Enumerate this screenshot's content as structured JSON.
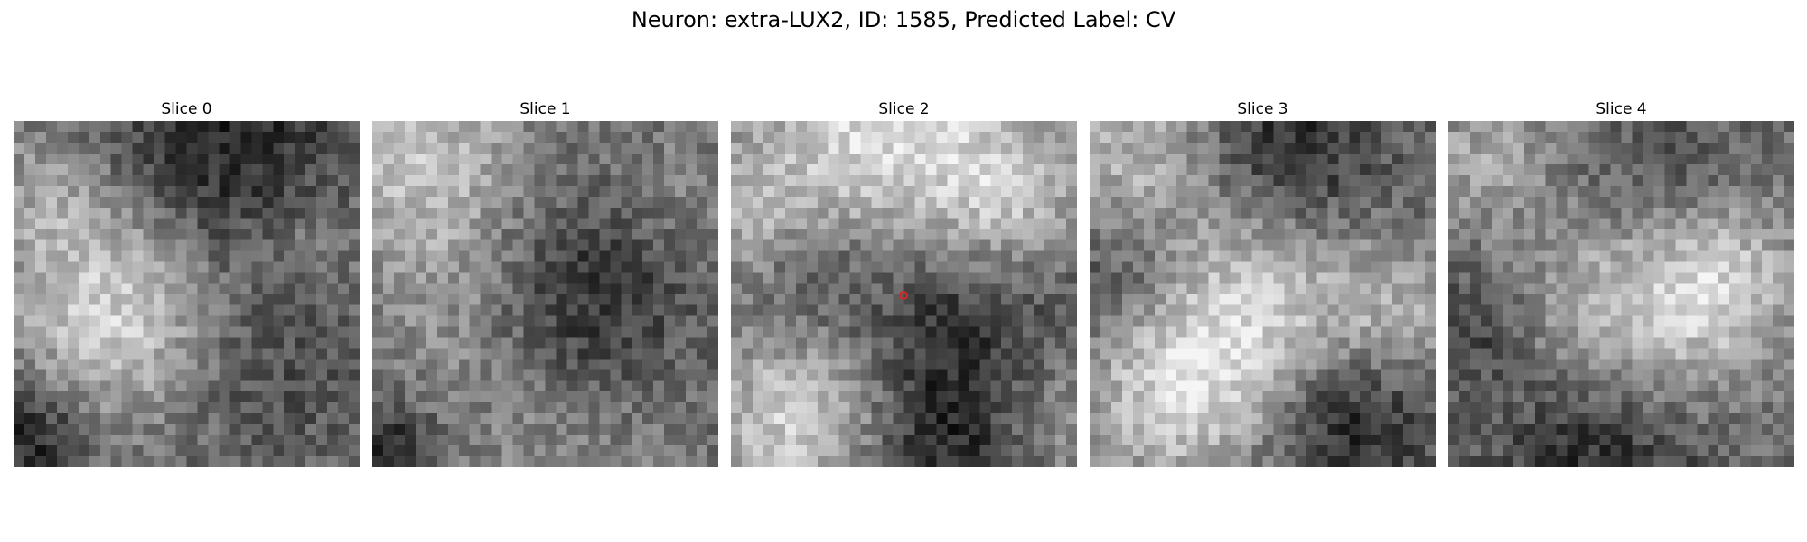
{
  "figure": {
    "title": "Neuron: extra-LUX2, ID: 1585, Predicted Label: CV"
  },
  "panels": [
    {
      "title": "Slice 0"
    },
    {
      "title": "Slice 1"
    },
    {
      "title": "Slice 2"
    },
    {
      "title": "Slice 3"
    },
    {
      "title": "Slice 4"
    }
  ],
  "marker": {
    "panel_index": 2,
    "color": "#d62728"
  },
  "image_style": {
    "colormap": "grayscale",
    "grid": "32x32"
  }
}
